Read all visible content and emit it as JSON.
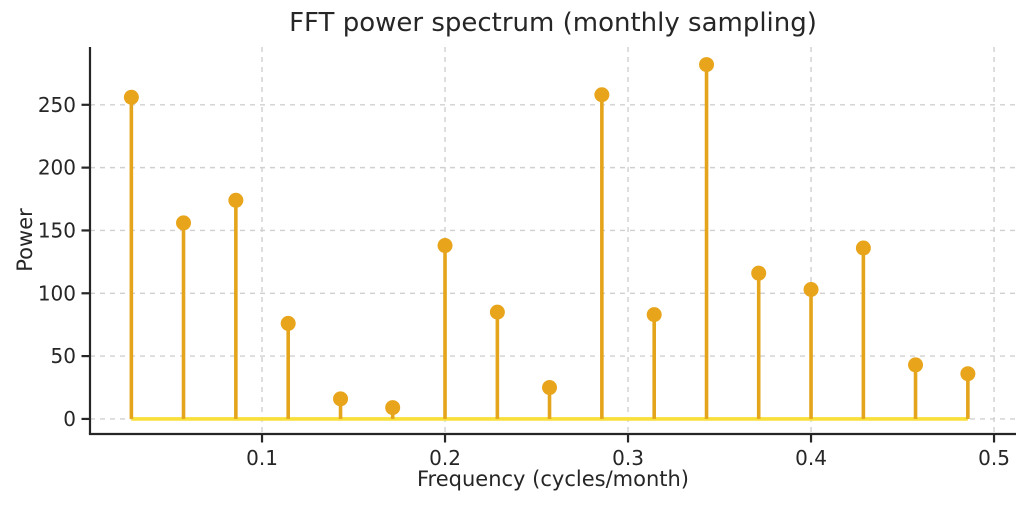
{
  "chart_data": {
    "type": "stem",
    "title": "FFT power spectrum (monthly sampling)",
    "xlabel": "Frequency (cycles/month)",
    "ylabel": "Power",
    "x": [
      0.0286,
      0.0571,
      0.0857,
      0.1143,
      0.1429,
      0.1714,
      0.2,
      0.2286,
      0.2571,
      0.2857,
      0.3143,
      0.3429,
      0.3714,
      0.4,
      0.4286,
      0.4571,
      0.4857
    ],
    "y": [
      256,
      156,
      174,
      76,
      16,
      9,
      138,
      85,
      25,
      258,
      83,
      282,
      116,
      103,
      136,
      43,
      36
    ],
    "xticks": [
      0.1,
      0.2,
      0.3,
      0.4,
      0.5
    ],
    "xtick_labels": [
      "0.1",
      "0.2",
      "0.3",
      "0.4",
      "0.5"
    ],
    "yticks": [
      0,
      50,
      100,
      150,
      200,
      250
    ],
    "ytick_labels": [
      "0",
      "50",
      "100",
      "150",
      "200",
      "250"
    ],
    "xlim": [
      0.006,
      0.512
    ],
    "ylim": [
      -12,
      296
    ],
    "grid": true,
    "legend_position": "none",
    "colors": {
      "stem": "#E4A41B",
      "marker": "#E8A51C",
      "baseline": "#F8DF3A",
      "grid": "#D0D0D0",
      "spine": "#262626",
      "text": "#262626",
      "background": "#FFFFFF"
    }
  }
}
